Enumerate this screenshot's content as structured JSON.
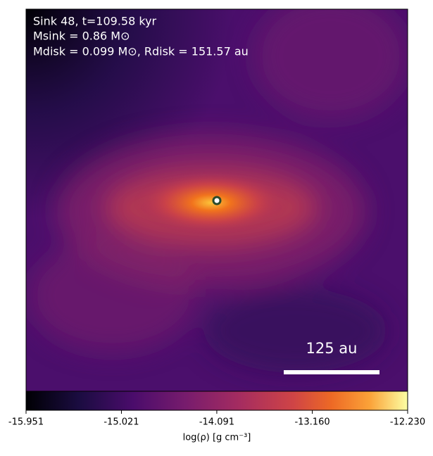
{
  "chart_data": {
    "type": "image",
    "annotations": [
      "Sink 48, t=109.58 kyr",
      "Msink = 0.86 M⊙",
      "Mdisk = 0.099 M⊙, Rdisk = 151.57 au"
    ],
    "scale_bar_label": "125 au",
    "colorbar_label": "log(ρ) [g cm⁻³]",
    "clim": [
      -15.951,
      -12.23
    ],
    "cticks": [
      -15.951,
      -15.021,
      -14.091,
      {
        "value": -13.16,
        "label": "-13.160"
      },
      {
        "value": -12.23,
        "label": "-12.230"
      }
    ]
  }
}
